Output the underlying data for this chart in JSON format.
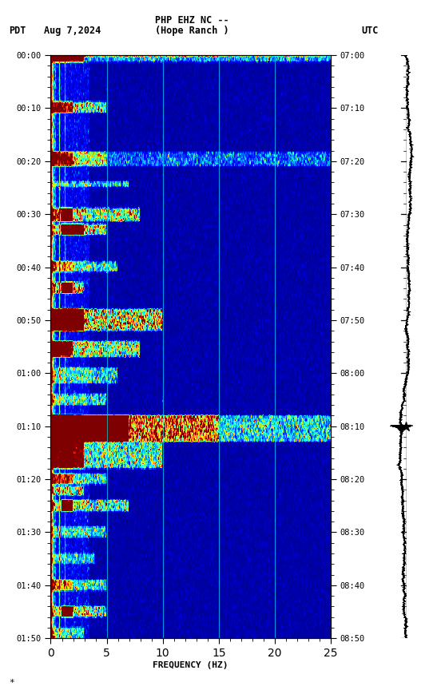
{
  "title_line1": "PHP EHZ NC --",
  "title_line2": "(Hope Ranch )",
  "left_label": "PDT",
  "date_label": "Aug 7,2024",
  "right_label": "UTC",
  "xlabel": "FREQUENCY (HZ)",
  "freq_min": 0,
  "freq_max": 25,
  "left_ticks": [
    "00:00",
    "00:10",
    "00:20",
    "00:30",
    "00:40",
    "00:50",
    "01:00",
    "01:10",
    "01:20",
    "01:30",
    "01:40",
    "01:50"
  ],
  "right_ticks": [
    "07:00",
    "07:10",
    "07:20",
    "07:30",
    "07:40",
    "07:50",
    "08:00",
    "08:10",
    "08:20",
    "08:30",
    "08:40",
    "08:50"
  ],
  "fig_bg": "#ffffff",
  "watermark": "*",
  "n_time": 550,
  "n_freq": 500,
  "total_minutes": 110
}
